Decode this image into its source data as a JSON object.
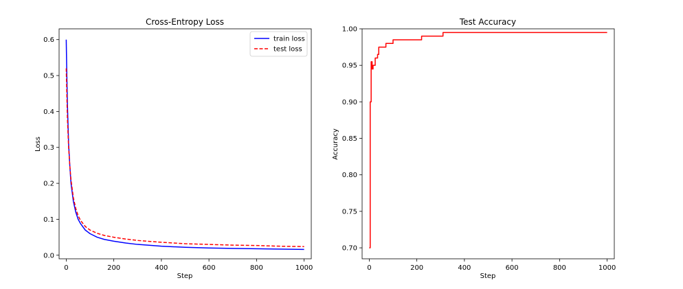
{
  "chart_data": [
    {
      "type": "line",
      "title": "Cross-Entropy Loss",
      "xlabel": "Step",
      "ylabel": "Loss",
      "xlim": [
        -30,
        1030
      ],
      "ylim": [
        -0.01,
        0.63
      ],
      "xticks": [
        "0",
        "200",
        "400",
        "600",
        "800",
        "1000"
      ],
      "yticks": [
        "0.0",
        "0.1",
        "0.2",
        "0.3",
        "0.4",
        "0.5",
        "0.6"
      ],
      "legend_position": "top-right",
      "series": [
        {
          "name": "train loss",
          "color": "#0000ff",
          "style": "solid",
          "x": [
            0,
            2,
            5,
            10,
            15,
            20,
            30,
            40,
            50,
            60,
            80,
            100,
            130,
            160,
            200,
            250,
            300,
            400,
            500,
            600,
            700,
            800,
            900,
            1000
          ],
          "y": [
            0.6,
            0.52,
            0.42,
            0.31,
            0.25,
            0.2,
            0.15,
            0.12,
            0.1,
            0.088,
            0.07,
            0.06,
            0.05,
            0.044,
            0.039,
            0.034,
            0.03,
            0.025,
            0.022,
            0.02,
            0.019,
            0.018,
            0.017,
            0.016
          ]
        },
        {
          "name": "test loss",
          "color": "#ff0000",
          "style": "dashed",
          "x": [
            0,
            2,
            5,
            10,
            15,
            20,
            30,
            40,
            50,
            60,
            80,
            100,
            130,
            160,
            200,
            250,
            300,
            400,
            500,
            600,
            700,
            800,
            900,
            1000
          ],
          "y": [
            0.52,
            0.46,
            0.38,
            0.3,
            0.25,
            0.21,
            0.16,
            0.13,
            0.11,
            0.097,
            0.08,
            0.07,
            0.061,
            0.055,
            0.05,
            0.045,
            0.041,
            0.036,
            0.032,
            0.03,
            0.028,
            0.027,
            0.025,
            0.024
          ]
        }
      ]
    },
    {
      "type": "line",
      "title": "Test Accuracy",
      "xlabel": "Step",
      "ylabel": "Accuracy",
      "xlim": [
        -30,
        1030
      ],
      "ylim": [
        0.685,
        1.0
      ],
      "xticks": [
        "0",
        "200",
        "400",
        "600",
        "800",
        "1000"
      ],
      "yticks": [
        "0.70",
        "0.75",
        "0.80",
        "0.85",
        "0.90",
        "0.95",
        "1.00"
      ],
      "series": [
        {
          "color": "#ff0000",
          "style": "solid",
          "x": [
            0,
            4,
            8,
            12,
            16,
            20,
            25,
            30,
            35,
            40,
            50,
            60,
            70,
            80,
            90,
            100,
            110,
            120,
            150,
            200,
            220,
            260,
            300,
            310,
            350,
            400,
            600,
            800,
            1000
          ],
          "y": [
            0.7,
            0.9,
            0.955,
            0.945,
            0.95,
            0.95,
            0.96,
            0.96,
            0.965,
            0.975,
            0.975,
            0.975,
            0.98,
            0.98,
            0.98,
            0.985,
            0.985,
            0.985,
            0.985,
            0.985,
            0.99,
            0.99,
            0.99,
            0.995,
            0.995,
            0.995,
            0.995,
            0.995,
            0.995
          ]
        }
      ]
    }
  ]
}
